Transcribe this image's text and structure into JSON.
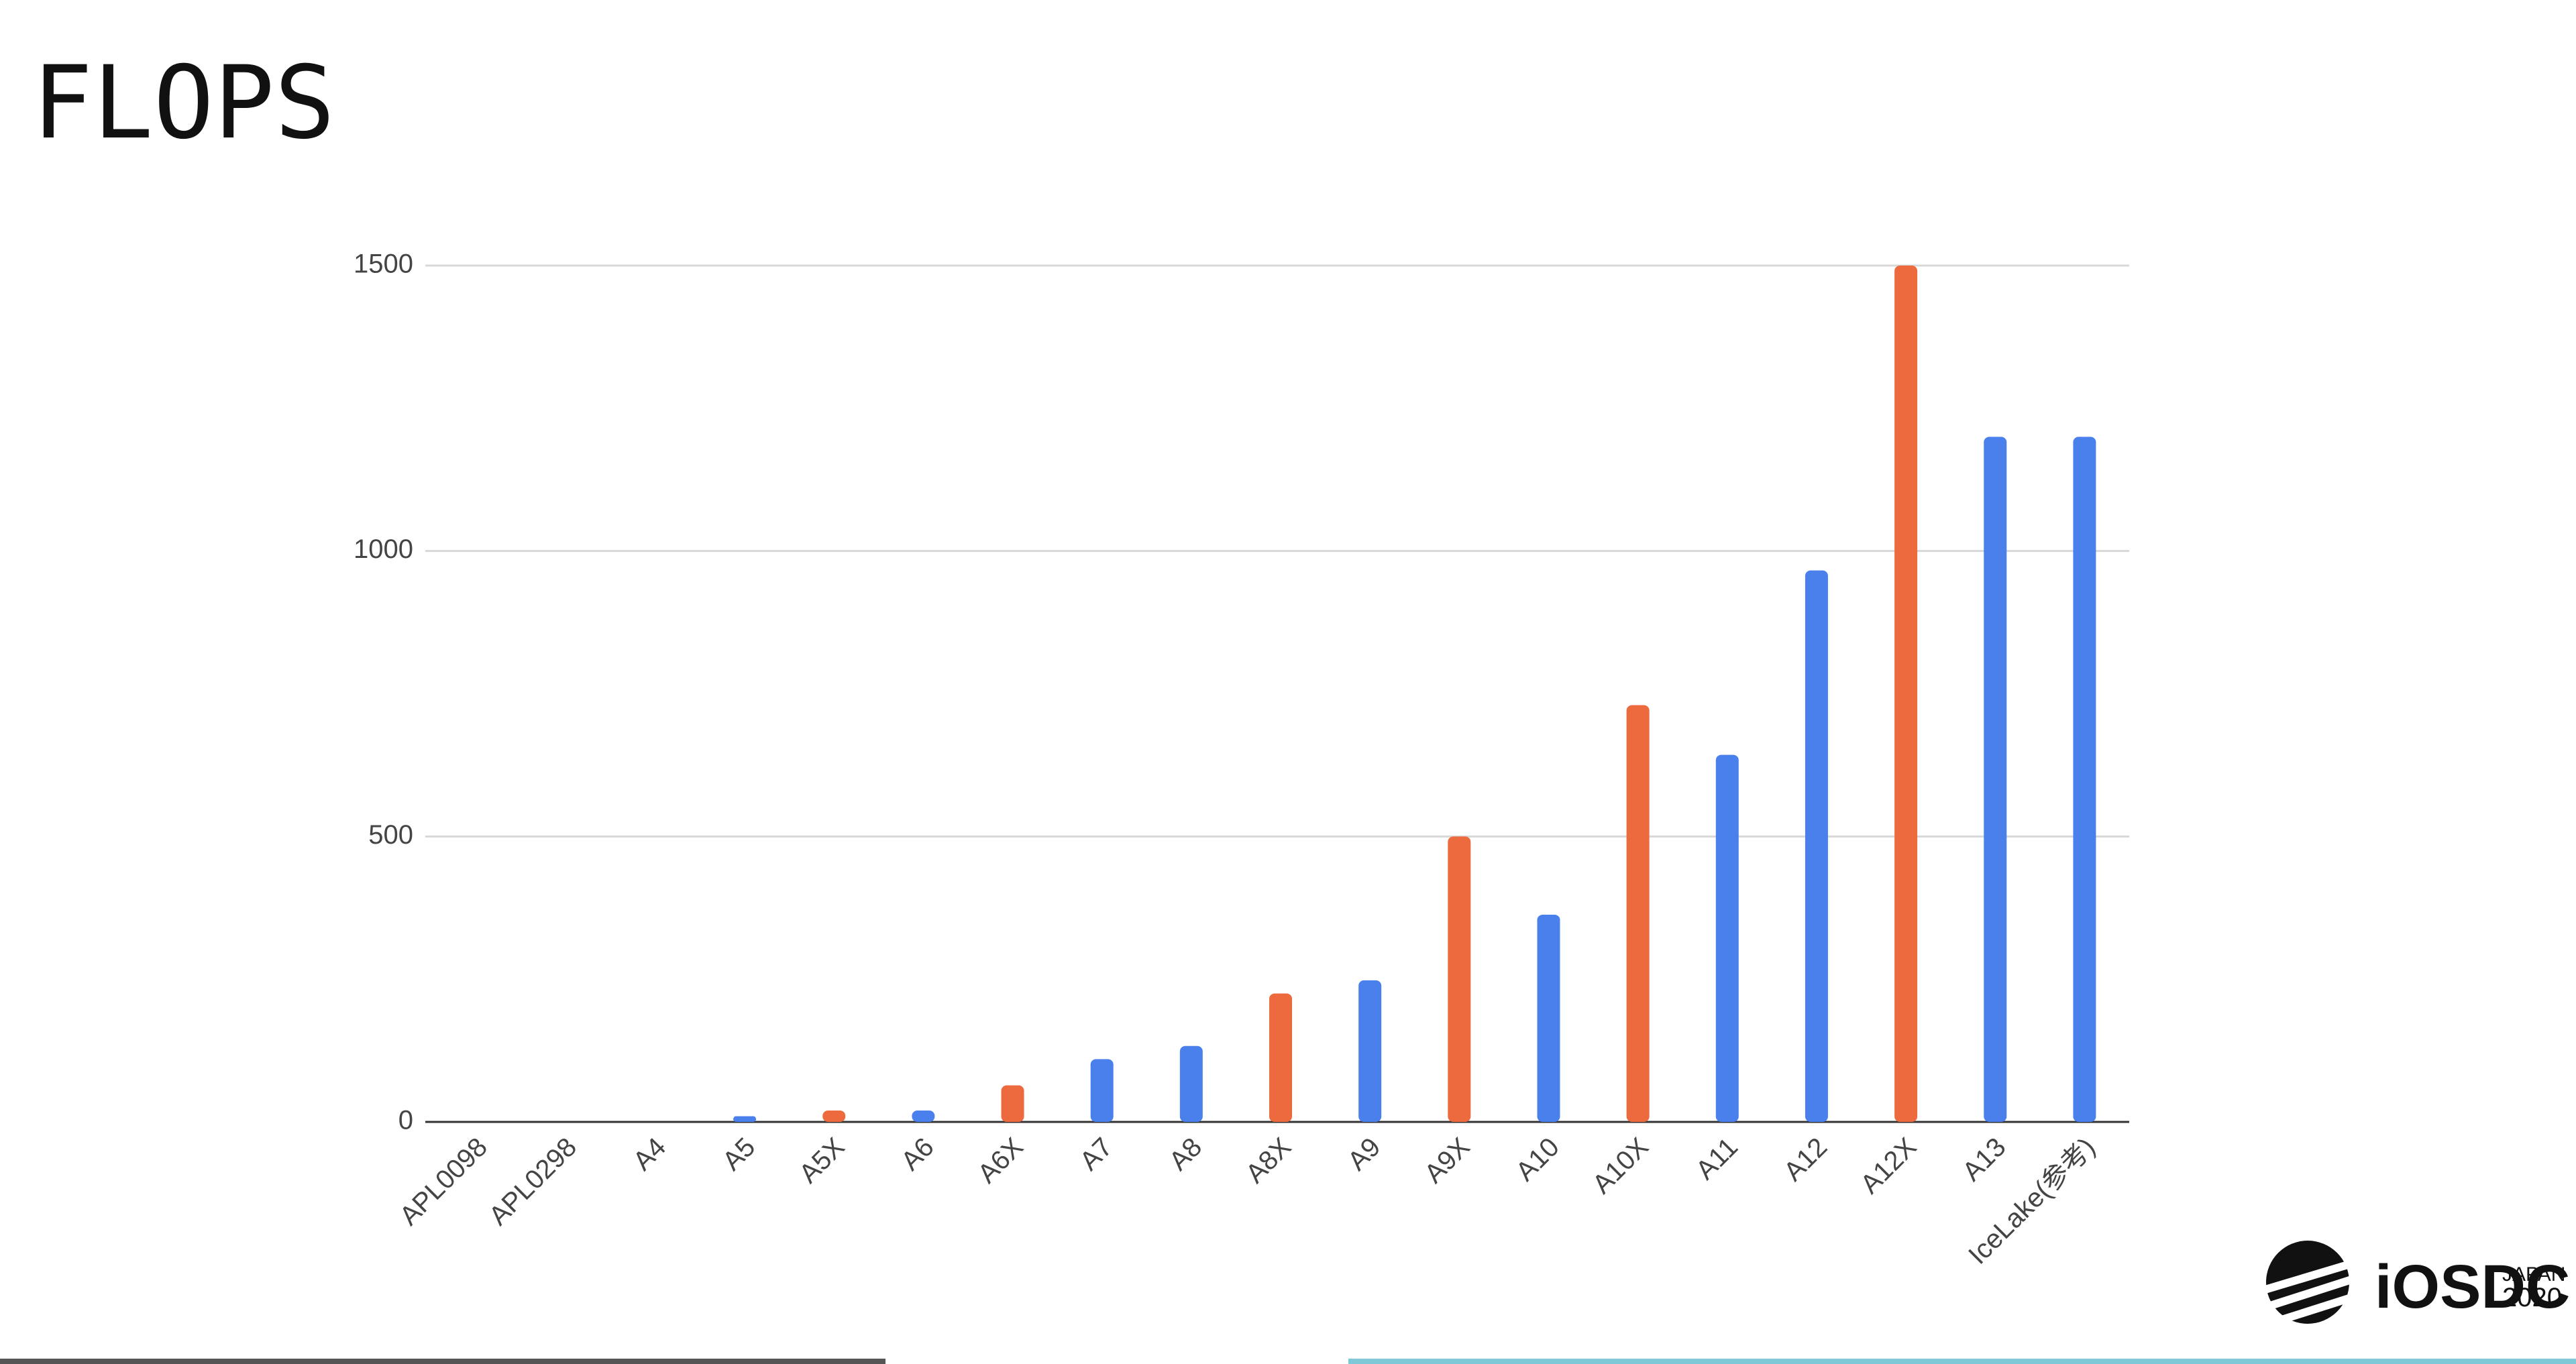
{
  "title": "FLOPS",
  "chart_data": {
    "type": "bar",
    "categories": [
      "APL0098",
      "APL0298",
      "A4",
      "A5",
      "A5X",
      "A6",
      "A6X",
      "A7",
      "A8",
      "A8X",
      "A9",
      "A9X",
      "A10",
      "A10X",
      "A11",
      "A12",
      "A12X",
      "A13",
      "IceLake(参考)"
    ],
    "values": [
      0,
      0,
      0,
      10,
      20,
      20,
      64,
      110,
      133,
      225,
      248,
      500,
      363,
      730,
      643,
      966,
      1500,
      1200,
      1200
    ],
    "colors": [
      "#4a80ec",
      "#4a80ec",
      "#4a80ec",
      "#4a80ec",
      "#ec6a3e",
      "#4a80ec",
      "#ec6a3e",
      "#4a80ec",
      "#4a80ec",
      "#ec6a3e",
      "#4a80ec",
      "#ec6a3e",
      "#4a80ec",
      "#ec6a3e",
      "#4a80ec",
      "#4a80ec",
      "#ec6a3e",
      "#4a80ec",
      "#4a80ec"
    ],
    "ylim": [
      0,
      1500
    ],
    "yticks": [
      0,
      500,
      1000,
      1500
    ],
    "grid": true
  },
  "logo": {
    "name": "iOSDC",
    "country": "JAPAN",
    "year": "2020"
  }
}
